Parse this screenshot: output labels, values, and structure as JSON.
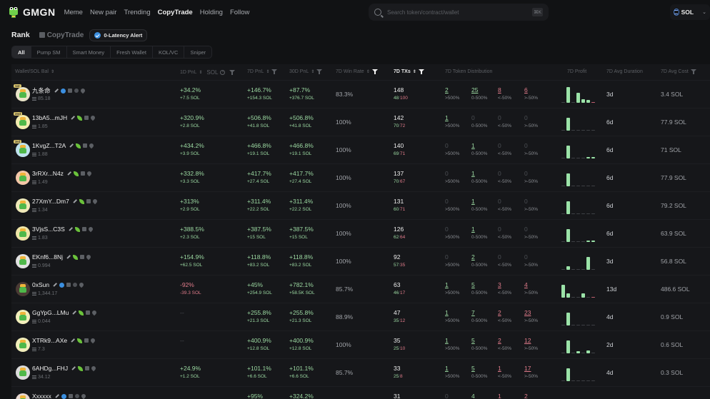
{
  "nav": {
    "brand": "GMGN",
    "items": [
      {
        "label": "Meme",
        "active": false
      },
      {
        "label": "New pair",
        "active": false
      },
      {
        "label": "Trending",
        "active": false
      },
      {
        "label": "CopyTrade",
        "active": true
      },
      {
        "label": "Holding",
        "active": false
      },
      {
        "label": "Follow",
        "active": false
      }
    ],
    "search_placeholder": "Search token/contract/wallet",
    "search_shortcut": "⌘K",
    "chain": "SOL",
    "chain_chevron": "⌄"
  },
  "subheader": {
    "title": "Rank",
    "copytrade_tab": "CopyTrade",
    "alert_button": "0-Latency Alert"
  },
  "filter_tabs": [
    {
      "label": "All",
      "active": true
    },
    {
      "label": "Pump SM",
      "active": false
    },
    {
      "label": "Smart Money",
      "active": false
    },
    {
      "label": "Fresh Wallet",
      "active": false
    },
    {
      "label": "KOL/VC",
      "active": false
    },
    {
      "label": "Sniper",
      "active": false
    }
  ],
  "columns": {
    "wallet": "Wallet/SOL Bal",
    "pnl_1d": "1D PnL",
    "sol_toggle": "SOL",
    "pnl_7d": "7D PnL",
    "pnl_30d": "30D PnL",
    "win_rate": "7D Win Rate",
    "txs": "7D TXs",
    "distribution": "7D Token Distribution",
    "profit": "7D Profit",
    "avg_duration": "7D Avg Duration",
    "avg_cost": "7D Avg Cost"
  },
  "dist_labels": [
    ">500%",
    "0-500%",
    "<-50%",
    ">-50%"
  ],
  "rows": [
    {
      "name": "九条命",
      "badge": "1st",
      "balance": "85.18",
      "verified": true,
      "pnl1d": "+34.2%",
      "pnl1d_sol": "+7.5 SOL",
      "pnl1d_sign": "pos",
      "pnl7d": "+146.7%",
      "pnl7d_sol": "+154.3 SOL",
      "pnl30d": "+87.7%",
      "pnl30d_sol": "+376.7 SOL",
      "winrate": "83.3%",
      "txs": "148",
      "buys": "48",
      "sells": "100",
      "dist": [
        "2",
        "25",
        "8",
        "6"
      ],
      "bars": [
        0,
        22,
        0,
        14,
        5,
        4,
        -1
      ],
      "duration": "3d",
      "cost": "3.4 SOL"
    },
    {
      "name": "13bA5...mJH",
      "badge": "2nd",
      "balance": "1.85",
      "verified": false,
      "pnl1d": "+320.9%",
      "pnl1d_sol": "+2.8 SOL",
      "pnl1d_sign": "pos",
      "pnl7d": "+506.8%",
      "pnl7d_sol": "+41.8 SOL",
      "pnl30d": "+506.8%",
      "pnl30d_sol": "+41.8 SOL",
      "winrate": "100%",
      "txs": "142",
      "buys": "70",
      "sells": "72",
      "dist": [
        "1",
        "0",
        "0",
        "0"
      ],
      "bars": [
        0,
        18,
        0,
        0,
        0,
        0,
        0
      ],
      "duration": "6d",
      "cost": "77.9 SOL"
    },
    {
      "name": "1KvgZ...T2A",
      "badge": "3rd",
      "balance": "1.88",
      "verified": false,
      "pnl1d": "+434.2%",
      "pnl1d_sol": "+3.9 SOL",
      "pnl1d_sign": "pos",
      "pnl7d": "+466.8%",
      "pnl7d_sol": "+19.1 SOL",
      "pnl30d": "+466.8%",
      "pnl30d_sol": "+19.1 SOL",
      "winrate": "100%",
      "txs": "140",
      "buys": "69",
      "sells": "71",
      "dist": [
        "0",
        "1",
        "0",
        "0"
      ],
      "bars": [
        0,
        18,
        0,
        0,
        0,
        2,
        2
      ],
      "duration": "6d",
      "cost": "71 SOL"
    },
    {
      "name": "3rRXr...N4z",
      "badge": "",
      "balance": "1.49",
      "verified": false,
      "pnl1d": "+332.8%",
      "pnl1d_sol": "+3.3 SOL",
      "pnl1d_sign": "pos",
      "pnl7d": "+417.7%",
      "pnl7d_sol": "+27.4 SOL",
      "pnl30d": "+417.7%",
      "pnl30d_sol": "+27.4 SOL",
      "winrate": "100%",
      "txs": "137",
      "buys": "70",
      "sells": "67",
      "dist": [
        "0",
        "1",
        "0",
        "0"
      ],
      "bars": [
        0,
        18,
        0,
        0,
        0,
        0,
        0
      ],
      "duration": "6d",
      "cost": "77.9 SOL"
    },
    {
      "name": "27XmY...Dm7",
      "badge": "",
      "balance": "1.34",
      "verified": false,
      "pnl1d": "+313%",
      "pnl1d_sol": "+2.9 SOL",
      "pnl1d_sign": "pos",
      "pnl7d": "+311.4%",
      "pnl7d_sol": "+22.2 SOL",
      "pnl30d": "+311.4%",
      "pnl30d_sol": "+22.2 SOL",
      "winrate": "100%",
      "txs": "131",
      "buys": "60",
      "sells": "71",
      "dist": [
        "0",
        "1",
        "0",
        "0"
      ],
      "bars": [
        0,
        18,
        0,
        0,
        0,
        0,
        0
      ],
      "duration": "6d",
      "cost": "79.2 SOL"
    },
    {
      "name": "3VjsS...C3S",
      "badge": "",
      "balance": "1.83",
      "verified": false,
      "pnl1d": "+388.5%",
      "pnl1d_sol": "+2.3 SOL",
      "pnl1d_sign": "pos",
      "pnl7d": "+387.5%",
      "pnl7d_sol": "+15 SOL",
      "pnl30d": "+387.5%",
      "pnl30d_sol": "+15 SOL",
      "winrate": "100%",
      "txs": "126",
      "buys": "62",
      "sells": "64",
      "dist": [
        "0",
        "1",
        "0",
        "0"
      ],
      "bars": [
        0,
        18,
        0,
        0,
        0,
        2,
        2
      ],
      "duration": "6d",
      "cost": "63.9 SOL"
    },
    {
      "name": "EKnf6...8Nj",
      "badge": "",
      "balance": "0.994",
      "verified": false,
      "pnl1d": "+154.9%",
      "pnl1d_sol": "+62.5 SOL",
      "pnl1d_sign": "pos",
      "pnl7d": "+118.8%",
      "pnl7d_sol": "+83.2 SOL",
      "pnl30d": "+118.8%",
      "pnl30d_sol": "+83.2 SOL",
      "winrate": "100%",
      "txs": "92",
      "buys": "57",
      "sells": "35",
      "dist": [
        "0",
        "2",
        "0",
        "0"
      ],
      "bars": [
        0,
        5,
        0,
        0,
        0,
        18,
        0
      ],
      "duration": "3d",
      "cost": "56.8 SOL"
    },
    {
      "name": "0xSun",
      "badge": "",
      "balance": "1,344.17",
      "verified": true,
      "pnl1d": "-92%",
      "pnl1d_sol": "-39.3 SOL",
      "pnl1d_sign": "neg",
      "pnl7d": "+45%",
      "pnl7d_sol": "+254.9 SOL",
      "pnl30d": "+782.1%",
      "pnl30d_sol": "+58.5K SOL",
      "winrate": "85.7%",
      "txs": "63",
      "buys": "46",
      "sells": "17",
      "dist": [
        "1",
        "5",
        "3",
        "4"
      ],
      "bars": [
        18,
        6,
        0,
        0,
        6,
        0,
        -1
      ],
      "duration": "13d",
      "cost": "486.6 SOL"
    },
    {
      "name": "GgYpG...LMu",
      "badge": "",
      "balance": "0.044",
      "verified": false,
      "pnl1d": "--",
      "pnl1d_sol": "",
      "pnl1d_sign": "none",
      "pnl7d": "+255.8%",
      "pnl7d_sol": "+21.3 SOL",
      "pnl30d": "+255.8%",
      "pnl30d_sol": "+21.3 SOL",
      "winrate": "88.9%",
      "txs": "47",
      "buys": "35",
      "sells": "12",
      "dist": [
        "1",
        "7",
        "2",
        "23"
      ],
      "bars": [
        0,
        18,
        0,
        0,
        0,
        0,
        0
      ],
      "duration": "4d",
      "cost": "0.9 SOL"
    },
    {
      "name": "XTRk9...AXe",
      "badge": "",
      "balance": "7.3",
      "verified": false,
      "pnl1d": "--",
      "pnl1d_sol": "",
      "pnl1d_sign": "none",
      "pnl7d": "+400.9%",
      "pnl7d_sol": "+12.8 SOL",
      "pnl30d": "+400.9%",
      "pnl30d_sol": "+12.8 SOL",
      "winrate": "100%",
      "txs": "35",
      "buys": "25",
      "sells": "10",
      "dist": [
        "1",
        "5",
        "2",
        "12"
      ],
      "bars": [
        0,
        18,
        0,
        3,
        0,
        4,
        0
      ],
      "duration": "2d",
      "cost": "0.6 SOL"
    },
    {
      "name": "6AHDg...FHJ",
      "badge": "",
      "balance": "34.12",
      "verified": false,
      "pnl1d": "+24.9%",
      "pnl1d_sol": "+1.2 SOL",
      "pnl1d_sign": "pos",
      "pnl7d": "+101.1%",
      "pnl7d_sol": "+6.6 SOL",
      "pnl30d": "+101.1%",
      "pnl30d_sol": "+6.6 SOL",
      "winrate": "85.7%",
      "txs": "33",
      "buys": "25",
      "sells": "8",
      "dist": [
        "1",
        "5",
        "1",
        "17"
      ],
      "bars": [
        0,
        18,
        0,
        0,
        0,
        0,
        0
      ],
      "duration": "4d",
      "cost": "0.3 SOL"
    },
    {
      "name": "Xxxxxx",
      "badge": "",
      "balance": "",
      "verified": true,
      "pnl1d": "",
      "pnl1d_sol": "",
      "pnl1d_sign": "none",
      "pnl7d": "+95%",
      "pnl7d_sol": "",
      "pnl30d": "+324.2%",
      "pnl30d_sol": "",
      "winrate": "",
      "txs": "31",
      "buys": "",
      "sells": "",
      "dist": [
        "0",
        "4",
        "1",
        "2"
      ],
      "bars": [],
      "duration": "",
      "cost": ""
    }
  ]
}
